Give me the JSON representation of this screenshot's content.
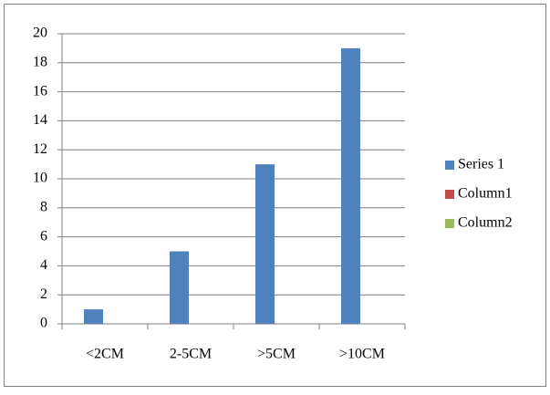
{
  "chart_data": {
    "type": "bar",
    "categories": [
      "<2CM",
      "2-5CM",
      ">5CM",
      ">10CM"
    ],
    "series": [
      {
        "name": "Series 1",
        "color": "#4f81bd",
        "values": [
          1,
          5,
          11,
          19
        ]
      },
      {
        "name": "Column1",
        "color": "#c0504d",
        "values": [
          null,
          null,
          null,
          null
        ]
      },
      {
        "name": "Column2",
        "color": "#9bbb59",
        "values": [
          null,
          null,
          null,
          null
        ]
      }
    ],
    "ylim": [
      0,
      20
    ],
    "yticks": [
      0,
      2,
      4,
      6,
      8,
      10,
      12,
      14,
      16,
      18,
      20
    ],
    "grid": true,
    "legend": "right"
  }
}
